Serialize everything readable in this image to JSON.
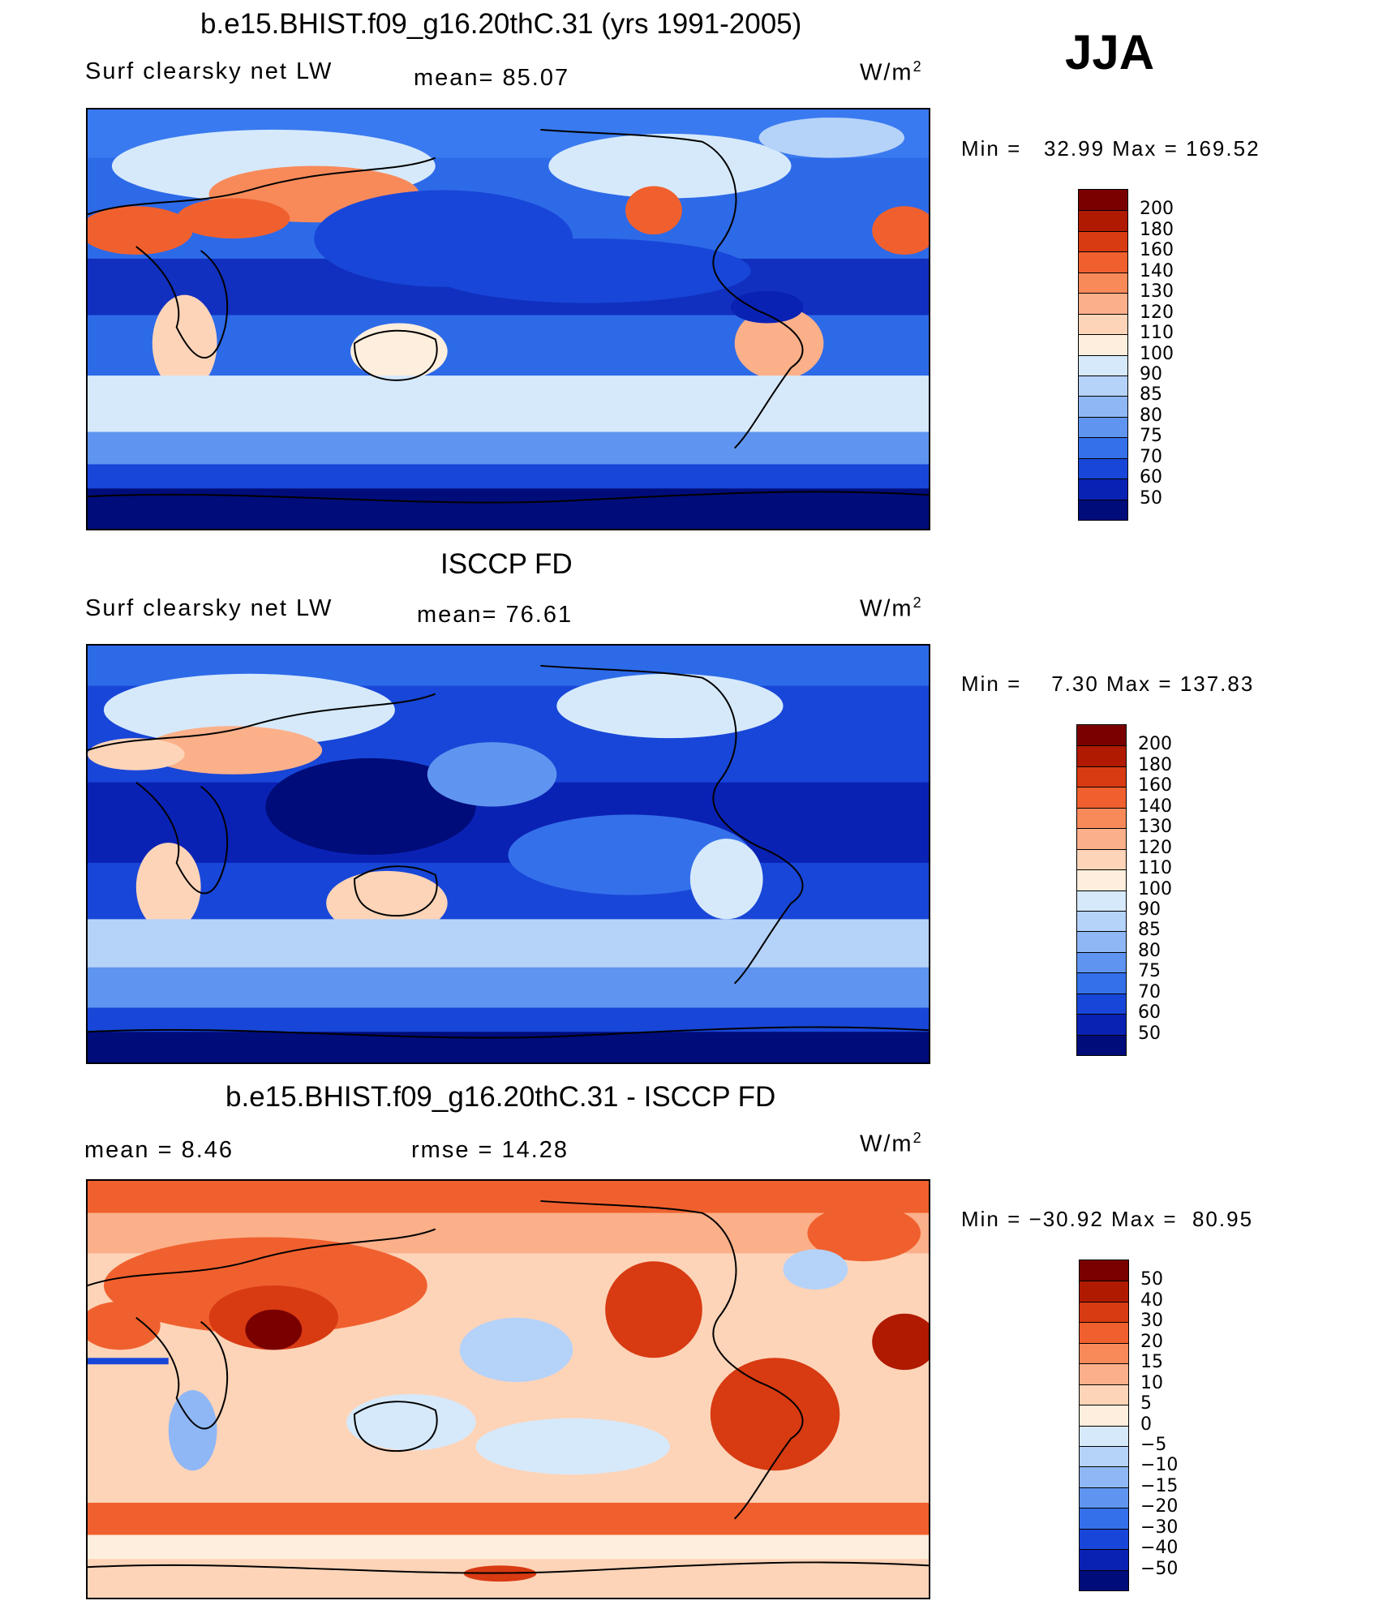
{
  "season": "JJA",
  "units": "W/m",
  "units_sup": "2",
  "panels": [
    {
      "title": "b.e15.BHIST.f09_g16.20thC.31 (yrs 1991-2005)",
      "var_label": "Surf clearsky net LW",
      "stat1": "mean=  85.07",
      "minmax": "Min =   32.99 Max = 169.52",
      "colorbar_levels": [
        "200",
        "180",
        "160",
        "140",
        "130",
        "120",
        "110",
        "100",
        "90",
        "85",
        "80",
        "75",
        "70",
        "60",
        "50"
      ],
      "colorbar_colors": [
        "#7a0000",
        "#b01a00",
        "#d83a12",
        "#f0602e",
        "#f88a5a",
        "#fbb08a",
        "#fdd4b8",
        "#feeedd",
        "#d6e9fb",
        "#b5d2f9",
        "#8fb7f6",
        "#5f95f0",
        "#3470ea",
        "#1846d8",
        "#0a22b4",
        "#000c7a"
      ]
    },
    {
      "title": "ISCCP FD",
      "var_label": "Surf clearsky net LW",
      "stat1": "mean=  76.61",
      "minmax": "Min =    7.30 Max = 137.83",
      "colorbar_levels": [
        "200",
        "180",
        "160",
        "140",
        "130",
        "120",
        "110",
        "100",
        "90",
        "85",
        "80",
        "75",
        "70",
        "60",
        "50"
      ],
      "colorbar_colors": [
        "#7a0000",
        "#b01a00",
        "#d83a12",
        "#f0602e",
        "#f88a5a",
        "#fbb08a",
        "#fdd4b8",
        "#feeedd",
        "#d6e9fb",
        "#b5d2f9",
        "#8fb7f6",
        "#5f95f0",
        "#3470ea",
        "#1846d8",
        "#0a22b4",
        "#000c7a"
      ]
    },
    {
      "title": "b.e15.BHIST.f09_g16.20thC.31 - ISCCP FD",
      "stat_mean": "mean =    8.46",
      "stat_rmse": "rmse =   14.28",
      "minmax": "Min = −30.92 Max =  80.95",
      "colorbar_levels": [
        "50",
        "40",
        "30",
        "20",
        "15",
        "10",
        "5",
        "0",
        "−5",
        "−10",
        "−15",
        "−20",
        "−30",
        "−40",
        "−50"
      ],
      "colorbar_colors": [
        "#7a0000",
        "#b01a00",
        "#d83a12",
        "#f0602e",
        "#f88a5a",
        "#fbb08a",
        "#fdd4b8",
        "#feeedd",
        "#d6e9fb",
        "#b5d2f9",
        "#8fb7f6",
        "#5f95f0",
        "#3470ea",
        "#1846d8",
        "#0a22b4",
        "#000c7a"
      ]
    }
  ]
}
